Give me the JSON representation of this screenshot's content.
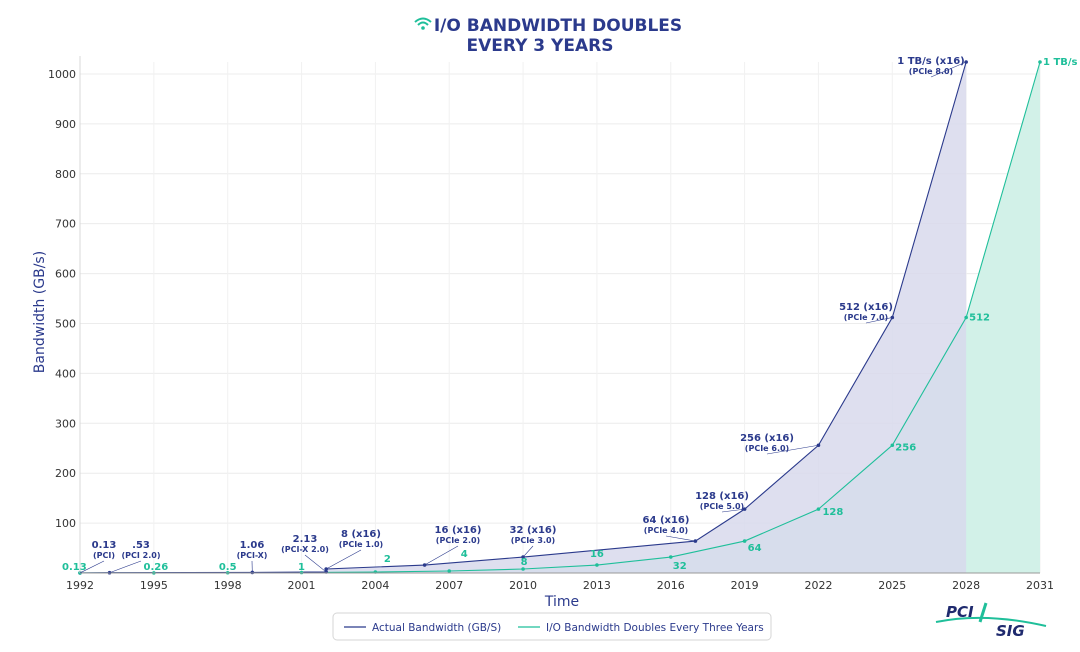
{
  "chart_data": {
    "type": "area",
    "title_line1": "I/O BANDWIDTH DOUBLES",
    "title_line2": "EVERY 3 YEARS",
    "xlabel": "Time",
    "ylabel": "Bandwidth (GB/s)",
    "xlim": [
      1992,
      2031
    ],
    "ylim": [
      0,
      1024
    ],
    "xticks": [
      "1992",
      "1995",
      "1998",
      "2001",
      "2004",
      "2007",
      "2010",
      "2013",
      "2016",
      "2019",
      "2022",
      "2025",
      "2028",
      "2031"
    ],
    "yticks": [
      "100",
      "200",
      "300",
      "400",
      "500",
      "600",
      "700",
      "800",
      "900",
      "1000"
    ],
    "series": [
      {
        "name": "Actual Bandwidth (GB/S)",
        "color": "#2b3a8c",
        "fill": "#d8d9ec",
        "points": [
          {
            "x": 1992,
            "y": 0.13
          },
          {
            "x": 1993.2,
            "y": 0.53
          },
          {
            "x": 1999,
            "y": 1.06
          },
          {
            "x": 2002,
            "y": 2.13
          },
          {
            "x": 2002,
            "y": 8
          },
          {
            "x": 2006,
            "y": 16
          },
          {
            "x": 2010,
            "y": 32
          },
          {
            "x": 2017,
            "y": 64
          },
          {
            "x": 2019,
            "y": 128
          },
          {
            "x": 2022,
            "y": 256
          },
          {
            "x": 2025,
            "y": 512
          },
          {
            "x": 2028,
            "y": 1024
          }
        ],
        "labels": [
          {
            "x": 1993,
            "y": 0.13,
            "main": "0.13",
            "sub": "(PCI)"
          },
          {
            "x": 1994.3,
            "y": 0.53,
            "main": ".53",
            "sub": "(PCI 2.0)"
          },
          {
            "x": 1999,
            "y": 1.06,
            "main": "1.06",
            "sub": "(PCI-X)"
          },
          {
            "x": 2002,
            "y": 2.13,
            "main": "2.13",
            "sub": "(PCI-X 2.0)"
          },
          {
            "x": 2004.2,
            "y": 8,
            "main": "8 (x16)",
            "sub": "(PCIe 1.0)"
          },
          {
            "x": 2008.2,
            "y": 16,
            "main": "16 (x16)",
            "sub": "(PCIe 2.0)"
          },
          {
            "x": 2010.2,
            "y": 32,
            "main": "32 (x16)",
            "sub": "(PCIe 3.0)"
          },
          {
            "x": 2016.7,
            "y": 64,
            "main": "64 (x16)",
            "sub": "(PCIe 4.0)"
          },
          {
            "x": 2018.9,
            "y": 128,
            "main": "128 (x16)",
            "sub": "(PCIe 5.0)"
          },
          {
            "x": 2020.9,
            "y": 256,
            "main": "256 (x16)",
            "sub": "(PCIe 6.0)"
          },
          {
            "x": 2024.9,
            "y": 512,
            "main": "512 (x16)",
            "sub": "(PCIe 7.0)"
          },
          {
            "x": 2027.9,
            "y": 1024,
            "main": "1 TB/s (x16)",
            "sub": "(PCIe 8.0)"
          }
        ]
      },
      {
        "name": "I/O Bandwidth Doubles Every Three Years",
        "color": "#1fbf9a",
        "fill": "#d2f1e8",
        "points": [
          {
            "x": 1992,
            "y": 0.13
          },
          {
            "x": 1995,
            "y": 0.26
          },
          {
            "x": 1998,
            "y": 0.5
          },
          {
            "x": 2001,
            "y": 1
          },
          {
            "x": 2004,
            "y": 2
          },
          {
            "x": 2007,
            "y": 4
          },
          {
            "x": 2010,
            "y": 8
          },
          {
            "x": 2013,
            "y": 16
          },
          {
            "x": 2016,
            "y": 32
          },
          {
            "x": 2019,
            "y": 64
          },
          {
            "x": 2022,
            "y": 128
          },
          {
            "x": 2025,
            "y": 256
          },
          {
            "x": 2028,
            "y": 512
          },
          {
            "x": 2031,
            "y": 1024
          }
        ],
        "labels": [
          "0.13",
          "0.26",
          "0.5",
          "1",
          "2",
          "4",
          "8",
          "16",
          "32",
          "64",
          "128",
          "256",
          "512",
          "1 TB/s"
        ]
      }
    ],
    "legend": [
      "Actual Bandwidth (GB/S)",
      "I/O Bandwidth Doubles Every Three Years"
    ]
  },
  "logo": {
    "line1": "PCI",
    "line2": "SIG"
  }
}
